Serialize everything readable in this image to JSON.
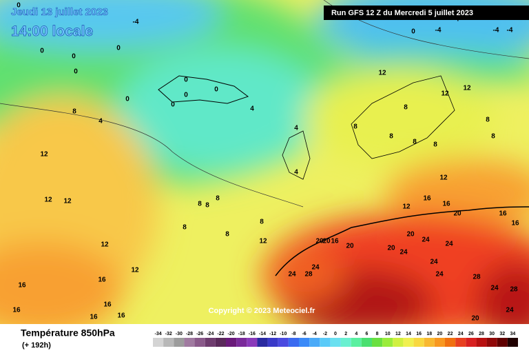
{
  "header": {
    "date": "Jeudi 13 juillet 2023",
    "time": "14:00 locale",
    "run": "Run GFS 12 Z du Mercredi 5 juillet 2023"
  },
  "map": {
    "copyright": "Copyright © 2023 Meteociel.fr",
    "contour_labels": [
      0,
      -4,
      0,
      0,
      0,
      0,
      0,
      0,
      0,
      0,
      0,
      4,
      8,
      4,
      12,
      12,
      12,
      12,
      12,
      8,
      8,
      8,
      8,
      8,
      8,
      12,
      4,
      4,
      12,
      12,
      12,
      8,
      8,
      8,
      8,
      8,
      8,
      8,
      12,
      16,
      16,
      20,
      16,
      16,
      12,
      20,
      20,
      20,
      24,
      24,
      24,
      24,
      24,
      24,
      28,
      24,
      28,
      24,
      28,
      24,
      20,
      16,
      16,
      16,
      16,
      16,
      16,
      20,
      20,
      16,
      0,
      -4,
      -4,
      -4,
      -4
    ]
  },
  "footer": {
    "title": "Température 850hPa",
    "subtitle": "(+ 192h)"
  },
  "color_scale": {
    "labels": [
      -34,
      -32,
      -30,
      -28,
      -26,
      -24,
      -22,
      -20,
      -18,
      -16,
      -14,
      -12,
      -10,
      -8,
      -6,
      -4,
      -2,
      0,
      2,
      4,
      6,
      8,
      10,
      12,
      14,
      16,
      18,
      20,
      22,
      24,
      26,
      28,
      30,
      32,
      34
    ],
    "colors": [
      "#d4d4d4",
      "#b8b8b8",
      "#9c9c9c",
      "#a07aa0",
      "#8a5a8a",
      "#6e3c6e",
      "#5a2a5a",
      "#6a1a7a",
      "#7a2a9a",
      "#8a3aba",
      "#2a2aa0",
      "#3a3ac8",
      "#4a4ae0",
      "#3a6af0",
      "#3a8af8",
      "#4aaaf8",
      "#5acaf8",
      "#6ae0f0",
      "#6af0d0",
      "#5af0a0",
      "#4ae070",
      "#6ae040",
      "#9aec3a",
      "#d0f040",
      "#f0f050",
      "#f8d840",
      "#f8b830",
      "#f89820",
      "#f07010",
      "#e84020",
      "#d82020",
      "#b81010",
      "#900808",
      "#600000",
      "#200000"
    ]
  }
}
